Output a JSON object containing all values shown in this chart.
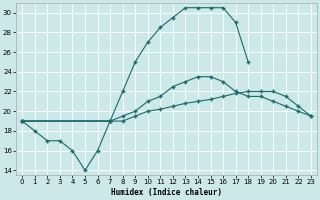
{
  "xlabel": "Humidex (Indice chaleur)",
  "xlim": [
    -0.5,
    23.5
  ],
  "ylim": [
    13.5,
    31.0
  ],
  "yticks": [
    14,
    16,
    18,
    20,
    22,
    24,
    26,
    28,
    30
  ],
  "xticks": [
    0,
    1,
    2,
    3,
    4,
    5,
    6,
    7,
    8,
    9,
    10,
    11,
    12,
    13,
    14,
    15,
    16,
    17,
    18,
    19,
    20,
    21,
    22,
    23
  ],
  "bg_color": "#cce8e8",
  "line_color": "#1a6b6b",
  "grid_color": "#ffffff",
  "curve1_x": [
    0,
    1,
    2,
    3,
    4,
    5,
    6,
    7
  ],
  "curve1_y": [
    19,
    18,
    17,
    17,
    16,
    14,
    16,
    19
  ],
  "curve2_x": [
    0,
    7,
    8,
    9,
    10,
    11,
    12,
    13,
    14,
    15,
    16,
    17,
    18,
    19,
    20,
    21,
    22,
    23
  ],
  "curve2_y": [
    19,
    19,
    19,
    19.5,
    20,
    20.2,
    20.5,
    20.8,
    21,
    21.2,
    21.5,
    21.8,
    22,
    22,
    22,
    21.5,
    20.5,
    19.5
  ],
  "curve3_x": [
    0,
    7,
    8,
    9,
    10,
    11,
    12,
    13,
    14,
    15,
    16,
    17,
    18,
    19,
    20,
    21,
    22,
    23
  ],
  "curve3_y": [
    19,
    19,
    19.5,
    20,
    21,
    21.5,
    22.5,
    23,
    23.5,
    23.5,
    23,
    22,
    21.5,
    21.5,
    21,
    20.5,
    20,
    19.5
  ],
  "curve4_x": [
    0,
    7,
    8,
    9,
    10,
    11,
    12,
    13,
    14,
    15,
    16,
    17,
    18
  ],
  "curve4_y": [
    19,
    19,
    22,
    25,
    27,
    28.5,
    29.5,
    30.5,
    30.5,
    30.5,
    30.5,
    29,
    25
  ]
}
